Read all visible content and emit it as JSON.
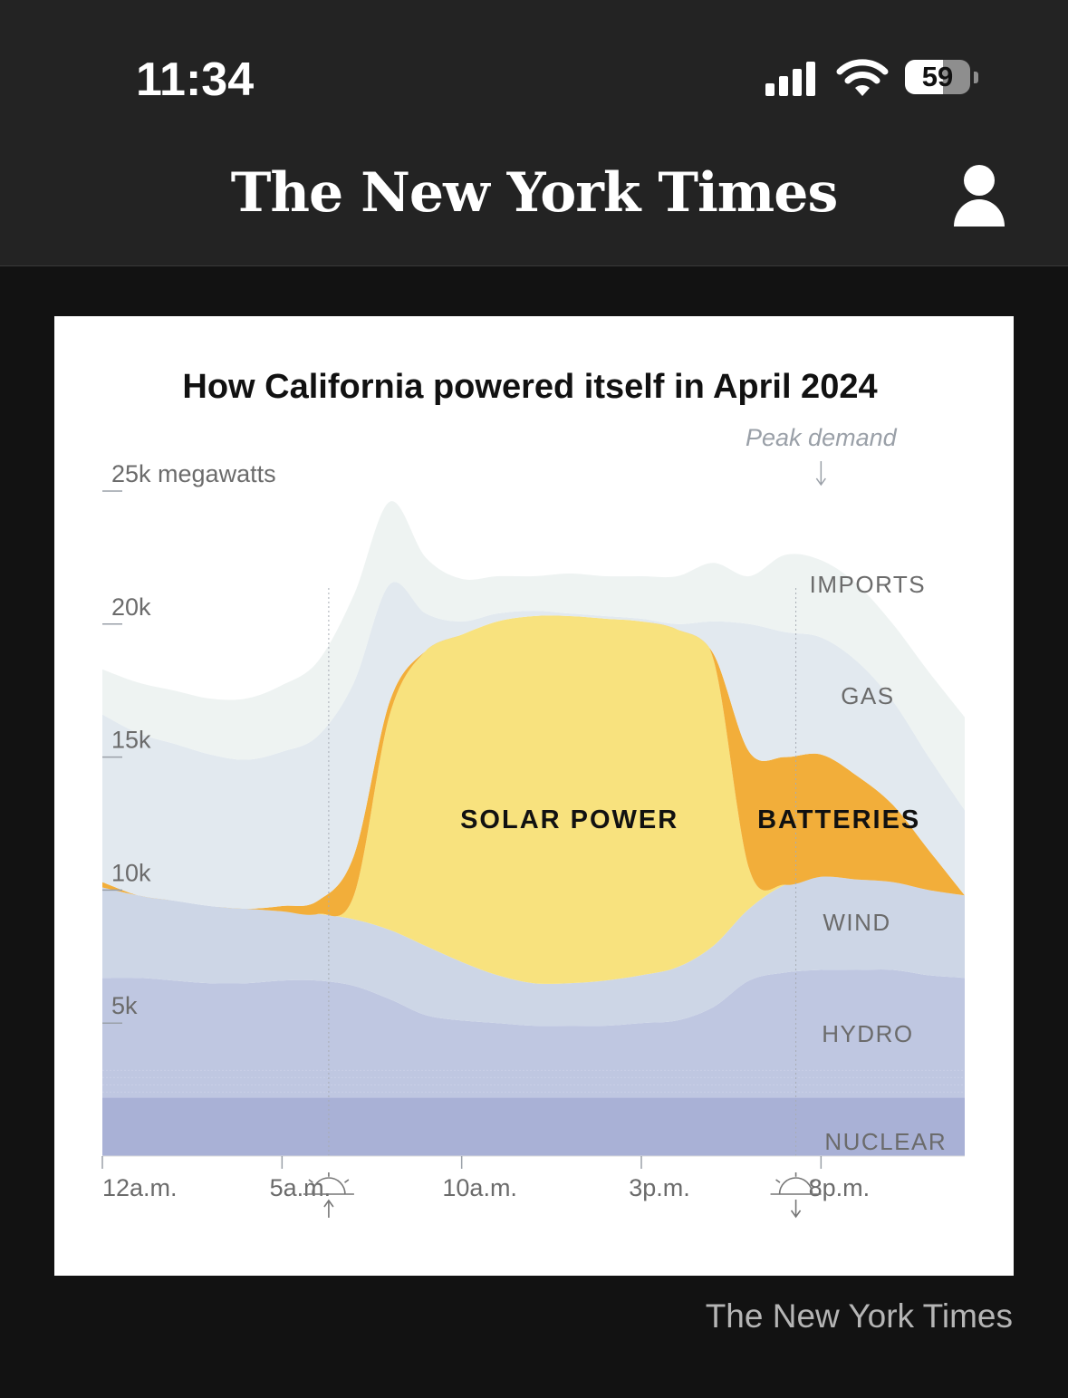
{
  "status_bar": {
    "time": "11:34",
    "battery_level": "59",
    "icons": [
      "cellular-signal-icon",
      "wifi-icon",
      "battery-icon"
    ]
  },
  "header": {
    "masthead": "The New York Times",
    "account_icon": "account-icon"
  },
  "credit": "The New York Times",
  "colors": {
    "background": "#121212",
    "bar": "#232323",
    "imports": "#eef3f2",
    "gas": "#e2e9ef",
    "wind": "#cdd6e6",
    "hydro": "#bfc7e1",
    "nuclear": "#a9b1d6",
    "solar": "#f8e27e",
    "batteries": "#f2ae3a"
  },
  "chart_data": {
    "type": "area",
    "stacked": true,
    "title": "How California powered itself in April 2024",
    "ylabel": "25k megawatts",
    "ylim": [
      0,
      25000
    ],
    "xlim": [
      0,
      24
    ],
    "y_ticks": [
      {
        "value": 25000,
        "label": "25k megawatts"
      },
      {
        "value": 20000,
        "label": "20k"
      },
      {
        "value": 15000,
        "label": "15k"
      },
      {
        "value": 10000,
        "label": "10k"
      },
      {
        "value": 5000,
        "label": "5k"
      }
    ],
    "x_ticks": [
      {
        "value": 0,
        "label": "12a.m."
      },
      {
        "value": 5,
        "label": "5a.m."
      },
      {
        "value": 10,
        "label": "10a.m."
      },
      {
        "value": 15,
        "label": "3p.m."
      },
      {
        "value": 20,
        "label": "8p.m."
      }
    ],
    "x": [
      0,
      1,
      2,
      3,
      4,
      5,
      6,
      7,
      8,
      9,
      10,
      11,
      12,
      13,
      14,
      15,
      16,
      17,
      18,
      19,
      20,
      21,
      22,
      23,
      24
    ],
    "series": [
      {
        "name": "NUCLEAR",
        "values": [
          2200,
          2200,
          2200,
          2200,
          2200,
          2200,
          2200,
          2200,
          2200,
          2200,
          2200,
          2200,
          2200,
          2200,
          2200,
          2200,
          2200,
          2200,
          2200,
          2200,
          2200,
          2200,
          2200,
          2200,
          2200
        ]
      },
      {
        "name": "HYDRO",
        "values": [
          4500,
          4500,
          4400,
          4300,
          4300,
          4400,
          4400,
          4200,
          3700,
          3100,
          2900,
          2800,
          2700,
          2700,
          2700,
          2800,
          2900,
          3400,
          4400,
          4700,
          4800,
          4800,
          4800,
          4600,
          4500
        ]
      },
      {
        "name": "WIND",
        "values": [
          3400,
          3100,
          3000,
          2900,
          2800,
          2600,
          2500,
          2500,
          2600,
          2600,
          2200,
          1800,
          1600,
          1600,
          1700,
          1800,
          2000,
          2300,
          2700,
          3300,
          3500,
          3400,
          3300,
          3200,
          3100
        ]
      },
      {
        "name": "SOLAR POWER",
        "values": [
          0,
          0,
          0,
          0,
          0,
          0,
          0,
          900,
          8100,
          11100,
          12300,
          13300,
          13800,
          13800,
          13600,
          13300,
          12700,
          10800,
          1500,
          0,
          0,
          0,
          0,
          0,
          0
        ]
      },
      {
        "name": "BATTERIES",
        "values": [
          200,
          0,
          0,
          0,
          0,
          200,
          500,
          1500,
          500,
          0,
          0,
          0,
          0,
          0,
          0,
          0,
          0,
          200,
          4400,
          4800,
          4600,
          3900,
          2900,
          1500,
          0
        ]
      },
      {
        "name": "GAS",
        "values": [
          6300,
          6100,
          5900,
          5700,
          5600,
          5800,
          6200,
          6500,
          4400,
          1400,
          500,
          300,
          200,
          100,
          100,
          100,
          200,
          1200,
          4800,
          4700,
          4400,
          4300,
          3900,
          3500,
          3200
        ]
      },
      {
        "name": "IMPORTS",
        "values": [
          1700,
          1900,
          2000,
          2100,
          2300,
          2500,
          2800,
          3300,
          3100,
          2100,
          1600,
          1400,
          1300,
          1500,
          1500,
          1600,
          1800,
          2200,
          1800,
          2900,
          2900,
          2900,
          2900,
          3200,
          3500
        ]
      }
    ],
    "annotations": [
      {
        "text": "Peak demand",
        "x": 20
      },
      {
        "text": "sunrise",
        "x": 6.3
      },
      {
        "text": "sunset",
        "x": 19.3
      }
    ],
    "grid": false,
    "legend": "inline"
  }
}
